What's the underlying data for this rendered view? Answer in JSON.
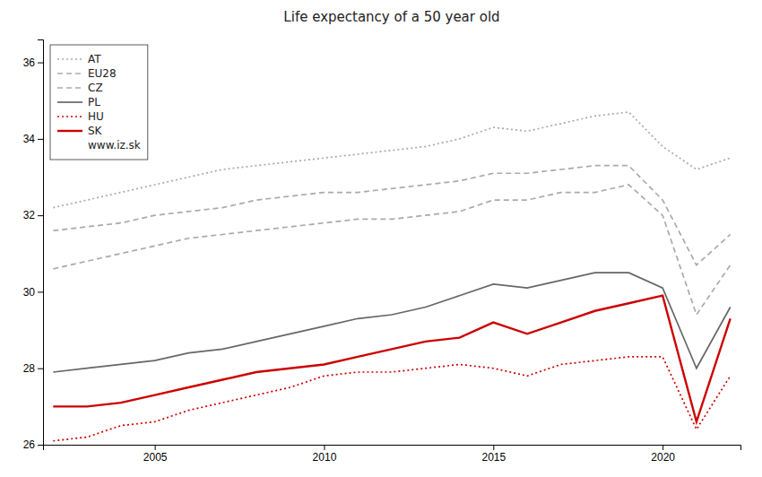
{
  "chart_data": {
    "type": "line",
    "title": "Life expectancy of a 50 year old",
    "x": [
      2002,
      2003,
      2004,
      2005,
      2006,
      2007,
      2008,
      2009,
      2010,
      2011,
      2012,
      2013,
      2014,
      2015,
      2016,
      2017,
      2018,
      2019,
      2020,
      2021,
      2022
    ],
    "series": [
      {
        "name": "AT",
        "color": "#aaaaaa",
        "line_style": "dotted",
        "values": [
          32.2,
          32.4,
          32.6,
          32.8,
          33.0,
          33.2,
          33.3,
          33.4,
          33.5,
          33.6,
          33.7,
          33.8,
          34.0,
          34.3,
          34.2,
          34.4,
          34.6,
          34.7,
          33.8,
          33.2,
          33.5
        ]
      },
      {
        "name": "EU28",
        "color": "#aaaaaa",
        "line_style": "dashed",
        "values": [
          31.6,
          31.7,
          31.8,
          32.0,
          32.1,
          32.2,
          32.4,
          32.5,
          32.6,
          32.6,
          32.7,
          32.8,
          32.9,
          33.1,
          33.1,
          33.2,
          33.3,
          33.3,
          32.4,
          30.7,
          31.5
        ]
      },
      {
        "name": "CZ",
        "color": "#aaaaaa",
        "line_style": "dashed",
        "values": [
          30.6,
          30.8,
          31.0,
          31.2,
          31.4,
          31.5,
          31.6,
          31.7,
          31.8,
          31.9,
          31.9,
          32.0,
          32.1,
          32.4,
          32.4,
          32.6,
          32.6,
          32.8,
          32.0,
          29.4,
          30.7
        ]
      },
      {
        "name": "PL",
        "color": "#666666",
        "line_style": "solid",
        "values": [
          27.9,
          28.0,
          28.1,
          28.2,
          28.4,
          28.5,
          28.7,
          28.9,
          29.1,
          29.3,
          29.4,
          29.6,
          29.9,
          30.2,
          30.1,
          30.3,
          30.5,
          30.5,
          30.1,
          28.0,
          29.6
        ]
      },
      {
        "name": "HU",
        "color": "#cc0000",
        "line_style": "dotted",
        "values": [
          26.1,
          26.2,
          26.5,
          26.6,
          26.9,
          27.1,
          27.3,
          27.5,
          27.8,
          27.9,
          27.9,
          28.0,
          28.1,
          28.0,
          27.8,
          28.1,
          28.2,
          28.3,
          28.3,
          26.4,
          27.8
        ]
      },
      {
        "name": "SK",
        "color": "#cc0000",
        "line_style": "solid",
        "values": [
          27.0,
          27.0,
          27.1,
          27.3,
          27.5,
          27.7,
          27.9,
          28.0,
          28.1,
          28.3,
          28.5,
          28.7,
          28.8,
          29.2,
          28.9,
          29.2,
          29.5,
          29.7,
          29.9,
          26.6,
          29.3
        ]
      }
    ],
    "xlim": [
      2001.7,
      2022.3
    ],
    "xticks": [
      2005,
      2010,
      2015,
      2020
    ],
    "ylim": [
      26,
      36.6
    ],
    "yticks": [
      26,
      28,
      30,
      32,
      34,
      36
    ],
    "grid": false,
    "legend": "upper left",
    "annotation": "www.iz.sk"
  }
}
